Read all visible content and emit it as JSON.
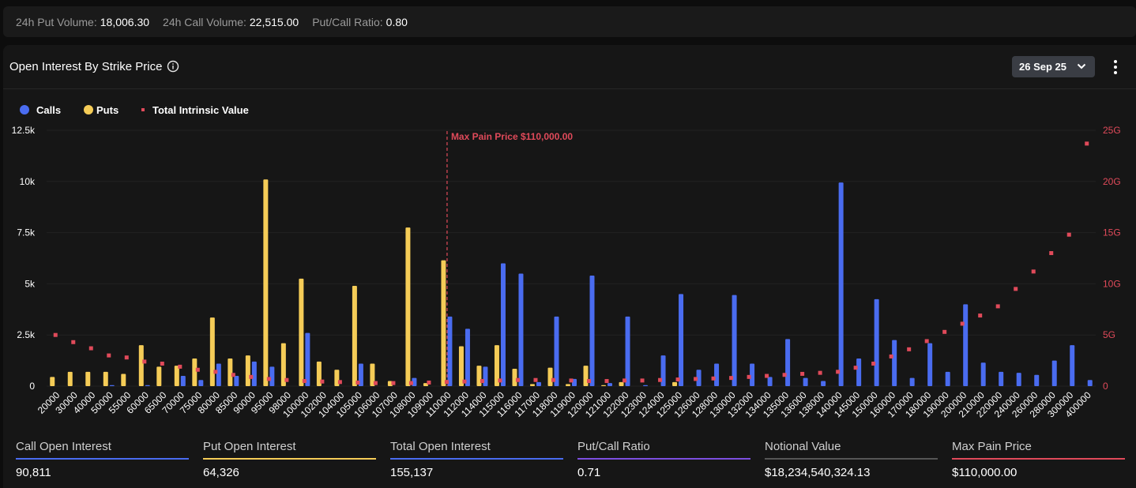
{
  "top_stats": [
    {
      "label": "24h Put Volume:",
      "value": "18,006.30"
    },
    {
      "label": "24h Call Volume:",
      "value": "22,515.00"
    },
    {
      "label": "Put/Call Ratio:",
      "value": "0.80"
    }
  ],
  "panel": {
    "title": "Open Interest By Strike Price",
    "expiry": "26 Sep 25"
  },
  "icons": {
    "info": "info-icon",
    "expiry_chevron": "chevron-down-icon",
    "menu": "more-vertical-icon"
  },
  "colors": {
    "calls": "#4a6cf0",
    "puts": "#f5cc57",
    "intrinsic": "#e04a5a",
    "max_pain": "#e04a5a",
    "total_oi": "#4a6cf0",
    "ratio": "#7c4fe0",
    "notional": "#555555"
  },
  "chart_data": {
    "type": "bar",
    "title": "Open Interest By Strike Price",
    "categories": [
      "20000",
      "30000",
      "40000",
      "50000",
      "55000",
      "60000",
      "65000",
      "70000",
      "75000",
      "80000",
      "85000",
      "90000",
      "95000",
      "98000",
      "100000",
      "102000",
      "104000",
      "105000",
      "106000",
      "107000",
      "108000",
      "109000",
      "110000",
      "112000",
      "114000",
      "115000",
      "116000",
      "117000",
      "118000",
      "119000",
      "120000",
      "121000",
      "122000",
      "123000",
      "124000",
      "125000",
      "126000",
      "128000",
      "130000",
      "132000",
      "134000",
      "135000",
      "136000",
      "138000",
      "140000",
      "145000",
      "150000",
      "160000",
      "170000",
      "180000",
      "190000",
      "200000",
      "210000",
      "220000",
      "240000",
      "260000",
      "280000",
      "300000",
      "400000"
    ],
    "series": [
      {
        "name": "Calls",
        "axis": "left",
        "kind": "bar",
        "values": [
          0,
          0,
          0,
          50,
          0,
          50,
          0,
          500,
          300,
          1100,
          500,
          1200,
          950,
          0,
          2600,
          0,
          0,
          1100,
          0,
          0,
          400,
          0,
          3400,
          2800,
          950,
          6000,
          5500,
          200,
          3400,
          350,
          5400,
          150,
          3400,
          50,
          1500,
          4500,
          800,
          1100,
          4450,
          1100,
          450,
          2300,
          400,
          250,
          9950,
          1350,
          4250,
          2250,
          400,
          2100,
          700,
          4000,
          1150,
          700,
          650,
          550,
          1250,
          2000,
          300
        ]
      },
      {
        "name": "Puts",
        "axis": "left",
        "kind": "bar",
        "values": [
          450,
          700,
          700,
          700,
          600,
          2000,
          950,
          1000,
          1350,
          3350,
          1350,
          1500,
          10100,
          2100,
          5250,
          1200,
          800,
          4900,
          1100,
          250,
          7750,
          150,
          6150,
          1950,
          1000,
          2000,
          850,
          100,
          900,
          100,
          1000,
          50,
          200,
          0,
          0,
          200,
          0,
          0,
          0,
          0,
          0,
          0,
          0,
          0,
          0,
          0,
          0,
          0,
          0,
          0,
          0,
          0,
          0,
          0,
          0,
          0,
          0,
          0,
          0
        ]
      },
      {
        "name": "Total Intrinsic Value",
        "axis": "right",
        "kind": "marker",
        "values": [
          5.0,
          4.3,
          3.7,
          3.0,
          2.8,
          2.4,
          2.2,
          1.9,
          1.6,
          1.4,
          1.1,
          0.9,
          0.7,
          0.6,
          0.5,
          0.45,
          0.4,
          0.35,
          0.3,
          0.3,
          0.3,
          0.35,
          0.4,
          0.45,
          0.5,
          0.55,
          0.6,
          0.6,
          0.6,
          0.55,
          0.5,
          0.5,
          0.55,
          0.55,
          0.6,
          0.65,
          0.7,
          0.75,
          0.8,
          0.9,
          1.0,
          1.1,
          1.2,
          1.3,
          1.4,
          1.8,
          2.2,
          2.9,
          3.6,
          4.4,
          5.3,
          6.1,
          6.9,
          7.8,
          9.5,
          11.2,
          13.0,
          14.8,
          23.7
        ]
      }
    ],
    "ylim_left": [
      0,
      12500
    ],
    "yticks_left": [
      "0",
      "2.5k",
      "5k",
      "7.5k",
      "10k",
      "12.5k"
    ],
    "ylim_right": [
      0,
      25
    ],
    "yticks_right": [
      "0",
      "5G",
      "10G",
      "15G",
      "20G",
      "25G"
    ],
    "max_pain": {
      "category": "110000",
      "label": "Max Pain Price $110,000.00"
    },
    "legend": [
      "Calls",
      "Puts",
      "Total Intrinsic Value"
    ],
    "legend_position": "top-left",
    "grid": true
  },
  "summary": [
    {
      "label": "Call Open Interest",
      "value": "90,811",
      "color": "#4a6cf0"
    },
    {
      "label": "Put Open Interest",
      "value": "64,326",
      "color": "#f5cc57"
    },
    {
      "label": "Total Open Interest",
      "value": "155,137",
      "color": "#4a6cf0"
    },
    {
      "label": "Put/Call Ratio",
      "value": "0.71",
      "color": "#7c4fe0"
    },
    {
      "label": "Notional Value",
      "value": "$18,234,540,324.13",
      "color": "#555555"
    },
    {
      "label": "Max Pain Price",
      "value": "$110,000.00",
      "color": "#e04a5a"
    }
  ]
}
